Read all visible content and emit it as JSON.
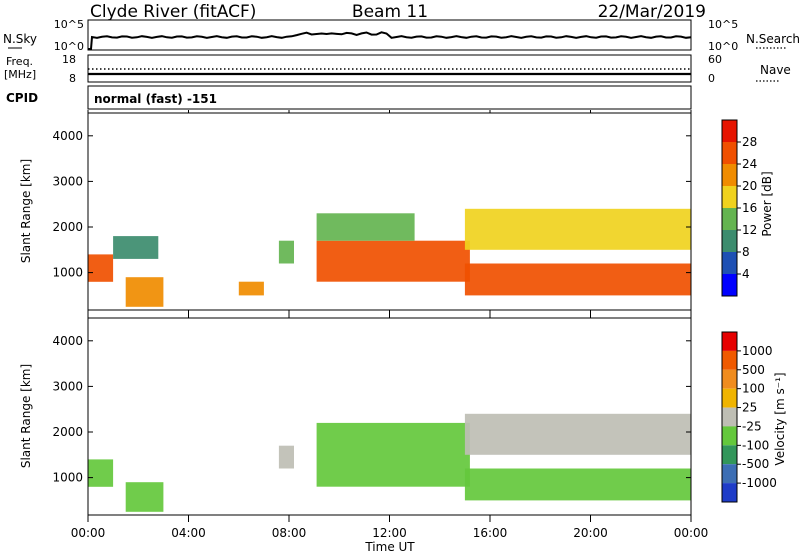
{
  "header": {
    "station": "Clyde River (fitACF)",
    "beam": "Beam 11",
    "date": "22/Mar/2019"
  },
  "nsky_panel": {
    "left_label": "N.Sky",
    "left_ticks": [
      "10^5",
      "10^0"
    ],
    "right_label": "N.Search",
    "right_ticks": [
      "10^5",
      "10^0"
    ]
  },
  "freq_panel": {
    "left_label_top": "Freq.",
    "left_label_unit": "[MHz]",
    "left_ticks": [
      "18",
      "8"
    ],
    "right_label": "Nave",
    "right_ticks": [
      "60",
      "0"
    ]
  },
  "cpid": {
    "label": "CPID",
    "value": "normal (fast) -151"
  },
  "power_panel": {
    "ylabel": "Slant Range [km]",
    "yticks": [
      "4000",
      "3000",
      "2000",
      "1000"
    ],
    "colorbar_label": "Power [dB]",
    "colorbar_ticks": [
      "28",
      "24",
      "20",
      "16",
      "12",
      "8",
      "4"
    ],
    "colors": [
      "#0000ff",
      "#1e50b4",
      "#3c8c6e",
      "#64b450",
      "#f0d21e",
      "#f08c00",
      "#f05000",
      "#e61400"
    ]
  },
  "velocity_panel": {
    "ylabel": "Slant Range [km]",
    "yticks": [
      "4000",
      "3000",
      "2000",
      "1000"
    ],
    "colorbar_label": "Velocity [m s⁻¹]",
    "colorbar_ticks": [
      "1000",
      "500",
      "100",
      "25",
      "-25",
      "-100",
      "-500",
      "-1000"
    ],
    "colors": [
      "#1e3cc8",
      "#3c6eb4",
      "#32965a",
      "#64c83c",
      "#bebeb4",
      "#f0b400",
      "#f08c1e",
      "#f05a00",
      "#e60000"
    ]
  },
  "time_axis": {
    "xlabel": "Time UT",
    "ticks": [
      "00:00",
      "04:00",
      "08:00",
      "12:00",
      "16:00",
      "20:00",
      "00:00"
    ]
  },
  "chart_data": [
    {
      "type": "heatmap",
      "title": "Power [dB]",
      "xlabel": "Time UT",
      "ylabel": "Slant Range [km]",
      "xlim": [
        0,
        24
      ],
      "ylim": [
        180,
        4500
      ],
      "clim": [
        0,
        32
      ],
      "bands": [
        {
          "t0": 0.0,
          "t1": 1.0,
          "r0": 800,
          "r1": 1400,
          "value": 24
        },
        {
          "t0": 1.5,
          "t1": 3.0,
          "r0": 250,
          "r1": 900,
          "value": 22
        },
        {
          "t0": 1.0,
          "t1": 2.8,
          "r0": 1300,
          "r1": 1800,
          "value": 10
        },
        {
          "t0": 6.0,
          "t1": 7.0,
          "r0": 500,
          "r1": 800,
          "value": 22
        },
        {
          "t0": 7.6,
          "t1": 8.2,
          "r0": 1200,
          "r1": 1700,
          "value": 14
        },
        {
          "t0": 9.1,
          "t1": 15.2,
          "r0": 800,
          "r1": 1700,
          "value": 24
        },
        {
          "t0": 9.1,
          "t1": 13.0,
          "r0": 1700,
          "r1": 2300,
          "value": 12
        },
        {
          "t0": 15.0,
          "t1": 24.0,
          "r0": 1500,
          "r1": 2400,
          "value": 16
        },
        {
          "t0": 15.0,
          "t1": 24.0,
          "r0": 500,
          "r1": 1200,
          "value": 26
        }
      ]
    },
    {
      "type": "heatmap",
      "title": "Velocity [m s⁻¹]",
      "xlabel": "Time UT",
      "ylabel": "Slant Range [km]",
      "xlim": [
        0,
        24
      ],
      "ylim": [
        180,
        4500
      ],
      "clim": [
        -1000,
        1000
      ],
      "bands": [
        {
          "t0": 0.0,
          "t1": 1.0,
          "r0": 800,
          "r1": 1400,
          "value": -300
        },
        {
          "t0": 1.5,
          "t1": 3.0,
          "r0": 250,
          "r1": 900,
          "value": -200
        },
        {
          "t0": 7.6,
          "t1": 8.2,
          "r0": 1200,
          "r1": 1700,
          "value": 80
        },
        {
          "t0": 9.1,
          "t1": 15.2,
          "r0": 800,
          "r1": 2200,
          "value": -300
        },
        {
          "t0": 15.0,
          "t1": 24.0,
          "r0": 1500,
          "r1": 2400,
          "value": 0
        },
        {
          "t0": 15.0,
          "t1": 24.0,
          "r0": 500,
          "r1": 1200,
          "value": -250
        }
      ]
    }
  ]
}
